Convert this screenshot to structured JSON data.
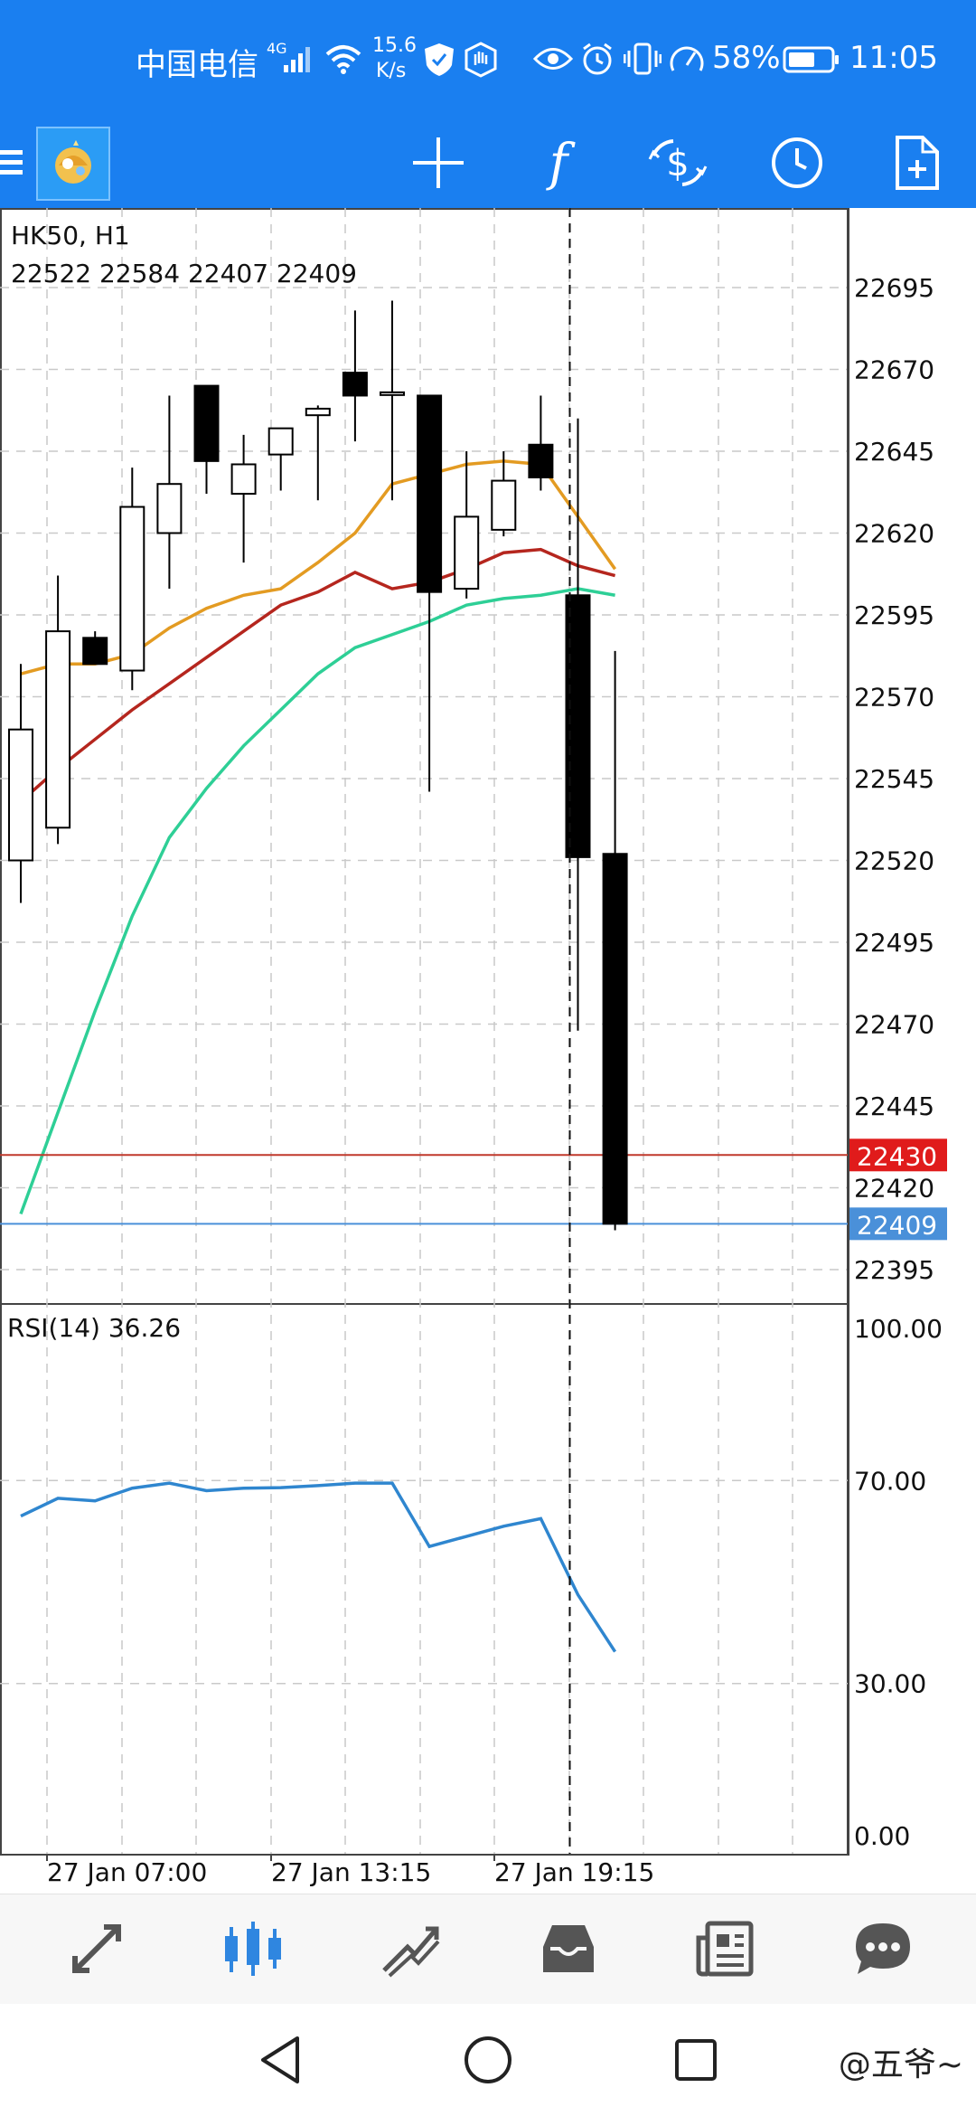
{
  "status_bar": {
    "carrier": "中国电信",
    "network": "4G",
    "speed_value": "15.6",
    "speed_unit": "K/s",
    "battery": "58%",
    "time": "11:05"
  },
  "toolbar": {
    "icons": [
      "menu-icon",
      "metatrader-logo",
      "crosshair-icon",
      "function-icon",
      "trade-icon",
      "timeframe-clock-icon",
      "new-document-icon"
    ]
  },
  "chart": {
    "symbol_timeframe": "HK50, H1",
    "ohlc": "22522 22584 22407 22409",
    "rsi_label": "RSI(14) 36.26",
    "price_ticks": [
      "22695",
      "22670",
      "22645",
      "22620",
      "22595",
      "22570",
      "22545",
      "22520",
      "22495",
      "22470",
      "22445",
      "22420",
      "22395"
    ],
    "rsi_ticks": [
      "100.00",
      "70.00",
      "30.00",
      "0.00"
    ],
    "time_labels": [
      "27 Jan 07:00",
      "27 Jan 13:15",
      "27 Jan 19:15"
    ],
    "price_tag_red": "22430",
    "price_tag_blue": "22409",
    "colors": {
      "up_body": "#ffffff",
      "down_body": "#000000",
      "ma_fast": "#e39b22",
      "ma_mid": "#b5261e",
      "ma_slow": "#2ecf96",
      "rsi": "#2f86cf",
      "ask_line": "#c0392b",
      "bid_line": "#4a90d9"
    }
  },
  "chart_data": {
    "type": "candlestick",
    "symbol": "HK50",
    "timeframe": "H1",
    "candles": [
      {
        "open": 22520,
        "high": 22580,
        "low": 22507,
        "close": 22560
      },
      {
        "open": 22530,
        "high": 22607,
        "low": 22525,
        "close": 22590
      },
      {
        "open": 22588,
        "high": 22590,
        "low": 22580,
        "close": 22580
      },
      {
        "open": 22578,
        "high": 22640,
        "low": 22572,
        "close": 22628
      },
      {
        "open": 22620,
        "high": 22662,
        "low": 22603,
        "close": 22635
      },
      {
        "open": 22665,
        "high": 22663,
        "low": 22632,
        "close": 22642
      },
      {
        "open": 22632,
        "high": 22650,
        "low": 22611,
        "close": 22641
      },
      {
        "open": 22644,
        "high": 22652,
        "low": 22633,
        "close": 22652
      },
      {
        "open": 22656,
        "high": 22659,
        "low": 22630,
        "close": 22658
      },
      {
        "open": 22669,
        "high": 22688,
        "low": 22648,
        "close": 22662
      },
      {
        "open": 22663,
        "high": 22691,
        "low": 22630,
        "close": 22663
      },
      {
        "open": 22662,
        "high": 22662,
        "low": 22541,
        "close": 22602
      },
      {
        "open": 22603,
        "high": 22645,
        "low": 22600,
        "close": 22625
      },
      {
        "open": 22621,
        "high": 22645,
        "low": 22619,
        "close": 22636
      },
      {
        "open": 22647,
        "high": 22662,
        "low": 22633,
        "close": 22637
      },
      {
        "open": 22601,
        "high": 22655,
        "low": 22468,
        "close": 22521
      },
      {
        "open": 22522,
        "high": 22584,
        "low": 22407,
        "close": 22409
      }
    ],
    "ma_fast": [
      22577,
      22580,
      22580,
      22583,
      22591,
      22597,
      22601,
      22603,
      22611,
      22620,
      22635,
      22638,
      22641,
      22642,
      22641,
      22625,
      22609
    ],
    "ma_mid": [
      22538,
      22548,
      22557,
      22566,
      22574,
      22582,
      22590,
      22598,
      22602,
      22608,
      22603,
      22605,
      22609,
      22614,
      22615,
      22610,
      22607
    ],
    "ma_slow": [
      22412,
      22443,
      22474,
      22503,
      22527,
      22542,
      22555,
      22566,
      22577,
      22585,
      22589,
      22593,
      22598,
      22600,
      22601,
      22603,
      22601
    ],
    "rsi": [
      63.0,
      66.5,
      66.0,
      68.5,
      69.5,
      68.0,
      68.5,
      68.6,
      69.0,
      69.5,
      69.5,
      57.0,
      59.0,
      61.0,
      62.5,
      47.5,
      36.26
    ],
    "current_ask": 22430,
    "current_bid": 22409,
    "price_range": [
      22380,
      22710
    ],
    "rsi_range": [
      0,
      100
    ]
  },
  "bottom_nav": {
    "items": [
      "quotes-icon",
      "charts-icon",
      "trade-icon",
      "history-icon",
      "news-icon",
      "messages-icon"
    ]
  },
  "watermark": "@五爷~"
}
